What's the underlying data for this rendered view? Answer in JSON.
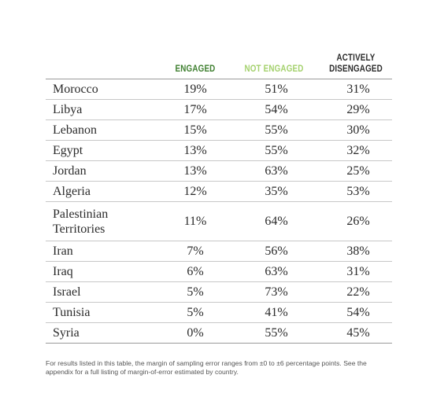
{
  "columns": {
    "engaged": "ENGAGED",
    "not_engaged": "NOT ENGAGED",
    "actively_line1": "ACTIVELY",
    "actively_line2": "DISENGAGED"
  },
  "colors": {
    "engaged": "#3e7f2f",
    "not_engaged": "#a4d16d",
    "actively_disengaged": "#2b2b2b"
  },
  "rows": [
    {
      "country": "Morocco",
      "engaged": "19%",
      "not_engaged": "51%",
      "actively_disengaged": "31%"
    },
    {
      "country": "Libya",
      "engaged": "17%",
      "not_engaged": "54%",
      "actively_disengaged": "29%"
    },
    {
      "country": "Lebanon",
      "engaged": "15%",
      "not_engaged": "55%",
      "actively_disengaged": "30%"
    },
    {
      "country": "Egypt",
      "engaged": "13%",
      "not_engaged": "55%",
      "actively_disengaged": "32%"
    },
    {
      "country": "Jordan",
      "engaged": "13%",
      "not_engaged": "63%",
      "actively_disengaged": "25%"
    },
    {
      "country": "Algeria",
      "engaged": "12%",
      "not_engaged": "35%",
      "actively_disengaged": "53%"
    },
    {
      "country": "Palestinian Territories",
      "engaged": "11%",
      "not_engaged": "64%",
      "actively_disengaged": "26%"
    },
    {
      "country": "Iran",
      "engaged": "7%",
      "not_engaged": "56%",
      "actively_disengaged": "38%"
    },
    {
      "country": "Iraq",
      "engaged": "6%",
      "not_engaged": "63%",
      "actively_disengaged": "31%"
    },
    {
      "country": "Israel",
      "engaged": "5%",
      "not_engaged": "73%",
      "actively_disengaged": "22%"
    },
    {
      "country": "Tunisia",
      "engaged": "5%",
      "not_engaged": "41%",
      "actively_disengaged": "54%"
    },
    {
      "country": "Syria",
      "engaged": "0%",
      "not_engaged": "55%",
      "actively_disengaged": "45%"
    }
  ],
  "footnote": "For results listed in this table, the margin of sampling error ranges from ±0 to ±6 percentage points. See the appendix for a full listing of margin-of-error estimated by country."
}
